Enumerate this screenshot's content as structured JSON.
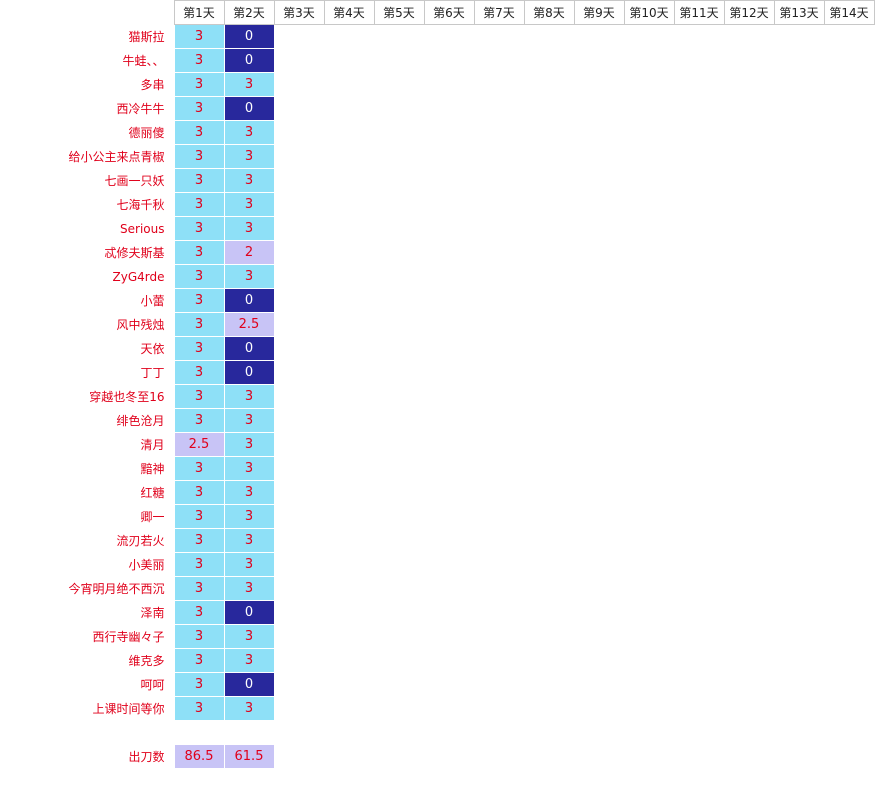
{
  "header": {
    "days": [
      "第1天",
      "第2天",
      "第3天",
      "第4天",
      "第5天",
      "第6天",
      "第7天",
      "第8天",
      "第9天",
      "第10天",
      "第11天",
      "第12天",
      "第13天",
      "第14天"
    ]
  },
  "rows": [
    {
      "name": "猫斯拉",
      "scores": [
        "3",
        "0"
      ]
    },
    {
      "name": "牛蛙、、",
      "scores": [
        "3",
        "0"
      ]
    },
    {
      "name": "多串",
      "scores": [
        "3",
        "3"
      ]
    },
    {
      "name": "西冷牛牛",
      "scores": [
        "3",
        "0"
      ]
    },
    {
      "name": "德丽傻",
      "scores": [
        "3",
        "3"
      ]
    },
    {
      "name": "给小公主来点青椒",
      "scores": [
        "3",
        "3"
      ]
    },
    {
      "name": "七画一只妖",
      "scores": [
        "3",
        "3"
      ]
    },
    {
      "name": "七海千秋",
      "scores": [
        "3",
        "3"
      ]
    },
    {
      "name": "Serious",
      "scores": [
        "3",
        "3"
      ]
    },
    {
      "name": "忒修夫斯基",
      "scores": [
        "3",
        "2"
      ]
    },
    {
      "name": "ZyG4rde",
      "scores": [
        "3",
        "3"
      ]
    },
    {
      "name": "小蕾",
      "scores": [
        "3",
        "0"
      ]
    },
    {
      "name": "风中残烛",
      "scores": [
        "3",
        "2.5"
      ]
    },
    {
      "name": "天依",
      "scores": [
        "3",
        "0"
      ]
    },
    {
      "name": "丁丁",
      "scores": [
        "3",
        "0"
      ]
    },
    {
      "name": "穿越也冬至16",
      "scores": [
        "3",
        "3"
      ]
    },
    {
      "name": "绯色沧月",
      "scores": [
        "3",
        "3"
      ]
    },
    {
      "name": "清月",
      "scores": [
        "2.5",
        "3"
      ]
    },
    {
      "name": "黯神",
      "scores": [
        "3",
        "3"
      ]
    },
    {
      "name": "红糖",
      "scores": [
        "3",
        "3"
      ]
    },
    {
      "name": "卿一",
      "scores": [
        "3",
        "3"
      ]
    },
    {
      "name": "流刃若火",
      "scores": [
        "3",
        "3"
      ]
    },
    {
      "name": "小美丽",
      "scores": [
        "3",
        "3"
      ]
    },
    {
      "name": "今宵明月绝不西沉",
      "scores": [
        "3",
        "3"
      ]
    },
    {
      "name": "泽南",
      "scores": [
        "3",
        "0"
      ]
    },
    {
      "name": "西行寺幽々子",
      "scores": [
        "3",
        "3"
      ]
    },
    {
      "name": "维克多",
      "scores": [
        "3",
        "3"
      ]
    },
    {
      "name": "呵呵",
      "scores": [
        "3",
        "0"
      ]
    },
    {
      "name": "上课时间等你",
      "scores": [
        "3",
        "3"
      ]
    }
  ],
  "totals": {
    "label": "出刀数",
    "values": [
      "86.5",
      "61.5"
    ]
  },
  "colors": {
    "full": "#8ee0f7",
    "partial": "#c8c4f6",
    "zero": "#28289c",
    "name_text": "#e0001b"
  }
}
